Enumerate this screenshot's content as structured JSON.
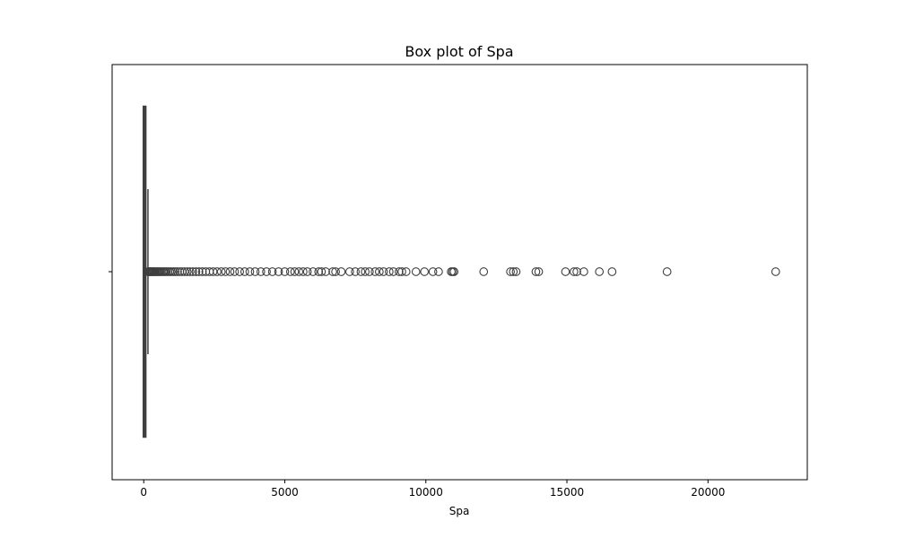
{
  "chart_data": {
    "type": "box",
    "orientation": "horizontal",
    "title": "Box plot of Spa",
    "xlabel": "Spa",
    "ylabel": "",
    "xlim": [
      -1120,
      23520
    ],
    "x_ticks": [
      0,
      5000,
      10000,
      15000,
      20000
    ],
    "x_tick_labels": [
      "0",
      "5000",
      "10000",
      "15000",
      "20000"
    ],
    "grid": false,
    "legend": "none",
    "colors": {
      "box_edge": "#3f3f3f",
      "box_fill": "#4c72b0",
      "outlier_edge": "#3f3f3f"
    },
    "series": [
      {
        "min": 0,
        "q1": 0,
        "median": 0,
        "q3": 60,
        "whisker_high": 150,
        "outliers": [
          160,
          180,
          200,
          225,
          250,
          280,
          310,
          340,
          370,
          400,
          440,
          480,
          520,
          560,
          600,
          650,
          700,
          750,
          800,
          860,
          920,
          980,
          1050,
          1120,
          1200,
          1280,
          1360,
          1450,
          1540,
          1640,
          1740,
          1850,
          1960,
          2080,
          2200,
          2330,
          2460,
          2600,
          2750,
          2900,
          3060,
          3220,
          3400,
          3580,
          3760,
          3950,
          4150,
          4350,
          4560,
          4780,
          5000,
          5200,
          5350,
          5500,
          5650,
          5800,
          6000,
          6200,
          6300,
          6450,
          6700,
          6800,
          7000,
          7300,
          7500,
          7700,
          7850,
          8000,
          8200,
          8350,
          8500,
          8700,
          8850,
          9050,
          9150,
          9300,
          9650,
          9950,
          10250,
          10450,
          10900,
          10950,
          11000,
          12050,
          13000,
          13100,
          13200,
          13900,
          14000,
          14950,
          15250,
          15350,
          15600,
          16150,
          16600,
          18550,
          22400
        ]
      }
    ]
  }
}
